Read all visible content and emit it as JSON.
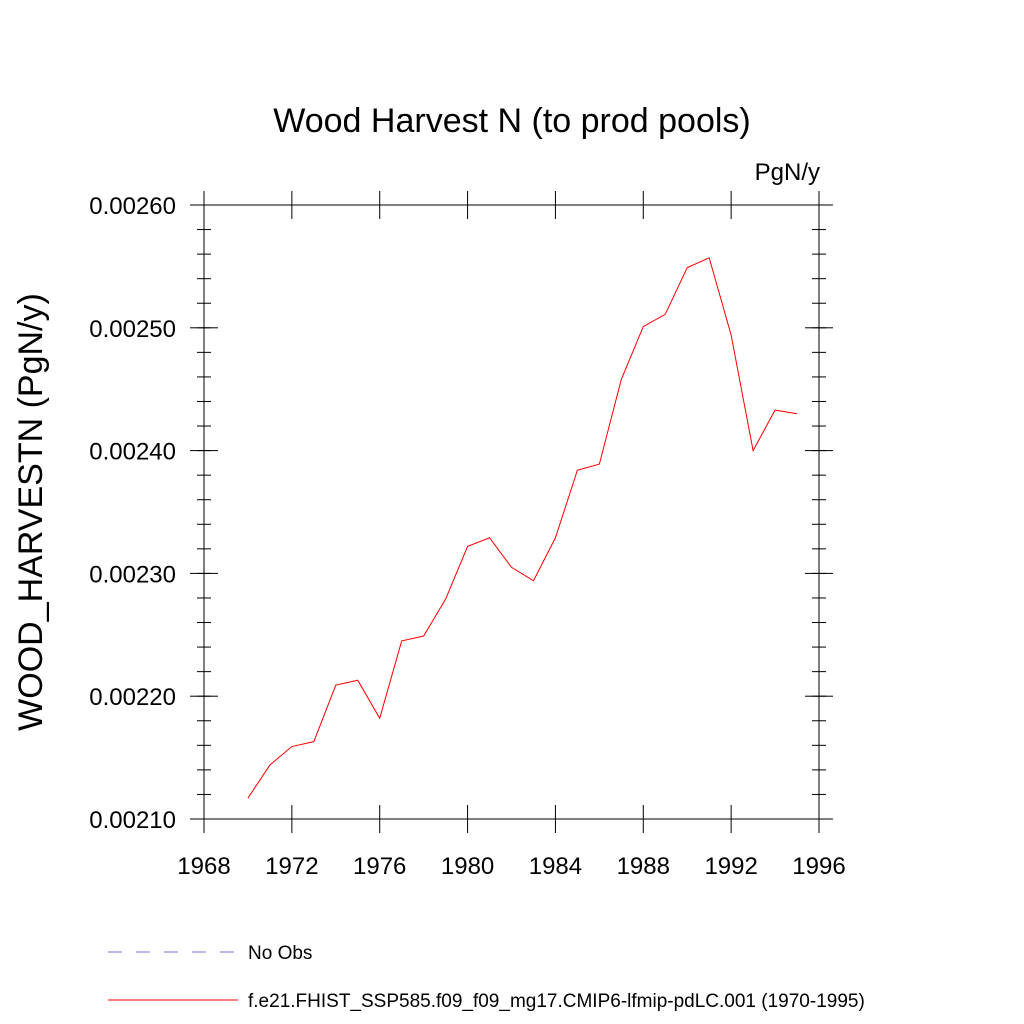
{
  "chart_data": {
    "type": "line",
    "title": "Wood Harvest N (to prod pools)",
    "units": "PgN/y",
    "ylabel": "WOOD_HARVESTN  (PgN/y)",
    "xlabel": "",
    "xlim": [
      1968,
      1996
    ],
    "ylim": [
      0.0021,
      0.0026
    ],
    "x_ticks": [
      1968,
      1972,
      1976,
      1980,
      1984,
      1988,
      1992,
      1996
    ],
    "x_tick_labels": [
      "1968",
      "1972",
      "1976",
      "1980",
      "1984",
      "1988",
      "1992",
      "1996"
    ],
    "y_ticks": [
      0.0021,
      0.0022,
      0.0023,
      0.0024,
      0.0025,
      0.0026
    ],
    "y_tick_labels": [
      "0.00210",
      "0.00220",
      "0.00230",
      "0.00240",
      "0.00250",
      "0.00260"
    ],
    "grid": false,
    "legend_position": "bottom",
    "series": [
      {
        "name": "f.e21.FHIST_SSP585.f09_f09_mg17.CMIP6-lfmip-pdLC.001 (1970-1995)",
        "color": "#ff0000",
        "style": "solid",
        "x": [
          1970,
          1971,
          1972,
          1973,
          1974,
          1975,
          1976,
          1977,
          1978,
          1979,
          1980,
          1981,
          1982,
          1983,
          1984,
          1985,
          1986,
          1987,
          1988,
          1989,
          1990,
          1991,
          1992,
          1993,
          1994,
          1995
        ],
        "y": [
          0.002117,
          0.002144,
          0.002159,
          0.002163,
          0.002209,
          0.002213,
          0.002182,
          0.002245,
          0.002249,
          0.002279,
          0.002322,
          0.002329,
          0.002305,
          0.002294,
          0.002329,
          0.002384,
          0.002389,
          0.002458,
          0.002501,
          0.002511,
          0.002549,
          0.002557,
          0.002494,
          0.0024,
          0.002433,
          0.00243
        ]
      }
    ],
    "legend": [
      {
        "label": "No Obs",
        "color": "#7f6fcf",
        "style": "dashed"
      },
      {
        "label": "f.e21.FHIST_SSP585.f09_f09_mg17.CMIP6-lfmip-pdLC.001 (1970-1995)",
        "color": "#ff0000",
        "style": "solid"
      }
    ]
  }
}
